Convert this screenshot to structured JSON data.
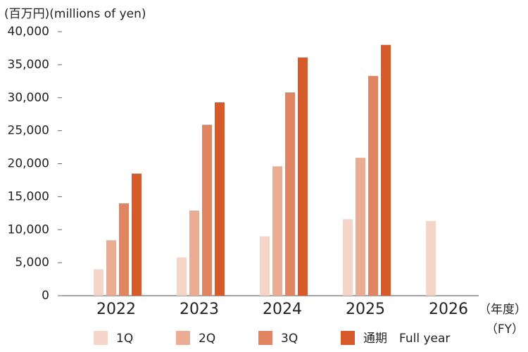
{
  "chart_data": {
    "type": "bar",
    "y_axis_label": "(百万円)(millions of yen)",
    "x_axis_label": "（年度）",
    "x_axis_label_en": "（FY）",
    "categories": [
      "2022",
      "2023",
      "2024",
      "2025",
      "2026"
    ],
    "series": [
      {
        "name": "1Q",
        "color": "#f5d5c8",
        "values": [
          4000,
          5800,
          9000,
          11600,
          11300
        ]
      },
      {
        "name": "2Q",
        "color": "#eaad94",
        "values": [
          8400,
          12900,
          19600,
          20900,
          null
        ]
      },
      {
        "name": "3Q",
        "color": "#e08461",
        "values": [
          14000,
          25900,
          30800,
          33300,
          null
        ]
      },
      {
        "name": "通期　Full year",
        "color": "#d65a2a",
        "values": [
          18500,
          29300,
          36100,
          38000,
          null
        ]
      }
    ],
    "ylim": [
      0,
      40000
    ],
    "yticks": [
      0,
      {
        "value": 5000,
        "label": "5,000"
      },
      {
        "value": 10000,
        "label": "10,000"
      },
      {
        "value": 15000,
        "label": "15,000"
      },
      {
        "value": 20000,
        "label": "20,000"
      },
      {
        "value": 25000,
        "label": "25,000"
      },
      {
        "value": 30000,
        "label": "30,000"
      },
      {
        "value": 35000,
        "label": "35,000"
      },
      {
        "value": 40000,
        "label": "40,000"
      }
    ],
    "grid": false
  }
}
